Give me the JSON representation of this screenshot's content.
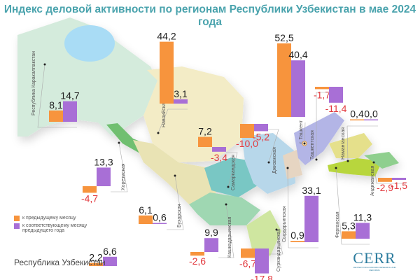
{
  "title": "Индекс деловой активности по регионам Республики Узбекистан в мае 2024 года",
  "colors": {
    "prev_month": "#f7943d",
    "prev_year": "#a86fd6",
    "negative_text": "#e23a3f",
    "positive_text": "#222222",
    "title": "#4aa3ad"
  },
  "legend": {
    "prev_month": "к предыдущему месяцу",
    "prev_year": "к соответствующему месяцу предыдущего года"
  },
  "logo": {
    "name": "CERR",
    "subtitle": "CENTER FOR ECONOMIC RESEARCH AND REFORMS"
  },
  "chart_data": {
    "type": "bar",
    "title": "Индекс деловой активности по регионам Республики Узбекистан в мае 2024 года",
    "series_names": [
      "к предыдущему месяцу",
      "к соответствующему месяцу предыдущего года"
    ],
    "regions": [
      {
        "id": "karakalpakstan",
        "name": "Республика Каракалпакстан",
        "prev_month": 8.1,
        "prev_year": 14.7,
        "prev_month_label": "8,1",
        "prev_year_label": "14,7"
      },
      {
        "id": "navoi",
        "name": "Навоийская",
        "prev_month": 44.2,
        "prev_year": 3.1,
        "prev_month_label": "44,2",
        "prev_year_label": "3,1"
      },
      {
        "id": "tashkent_city",
        "name": "г. Ташкент",
        "prev_month": 52.5,
        "prev_year": 40.4,
        "prev_month_label": "52,5",
        "prev_year_label": "40,4"
      },
      {
        "id": "tashkent_region",
        "name": "Ташкентская",
        "prev_month": -1.7,
        "prev_year": -11.4,
        "prev_month_label": "-1,7",
        "prev_year_label": "-11,4"
      },
      {
        "id": "namangan",
        "name": "Наманганская",
        "prev_month": 0.4,
        "prev_year": 0.0,
        "prev_month_label": "0,4",
        "prev_year_label": "0,0"
      },
      {
        "id": "andijan",
        "name": "Андижанская",
        "prev_month": -2.9,
        "prev_year": -1.5,
        "prev_month_label": "-2,9",
        "prev_year_label": "-1,5"
      },
      {
        "id": "fergana",
        "name": "Ферганская",
        "prev_month": 5.3,
        "prev_year": 11.3,
        "prev_month_label": "5,3",
        "prev_year_label": "11,3"
      },
      {
        "id": "syrdarya",
        "name": "Сырдарьинская",
        "prev_month": 0.9,
        "prev_year": 33.1,
        "prev_month_label": "0,9",
        "prev_year_label": "33,1"
      },
      {
        "id": "surkhandarya",
        "name": "Сурхандарьинская",
        "prev_month": -6.7,
        "prev_year": -17.8,
        "prev_month_label": "-6,7",
        "prev_year_label": "-17,8"
      },
      {
        "id": "kashkadarya",
        "name": "Кашкадарьинская",
        "prev_month": -2.6,
        "prev_year": 9.9,
        "prev_month_label": "-2,6",
        "prev_year_label": "9,9"
      },
      {
        "id": "samarkand",
        "name": "Самаркандская",
        "prev_month": 7.2,
        "prev_year": -3.4,
        "prev_month_label": "7,2",
        "prev_year_label": "-3,4"
      },
      {
        "id": "jizzakh",
        "name": "Джизакская",
        "prev_month": -10.0,
        "prev_year": -5.2,
        "prev_month_label": "-10,0",
        "prev_year_label": "-5,2"
      },
      {
        "id": "bukhara",
        "name": "Бухарская",
        "prev_month": 6.1,
        "prev_year": 0.6,
        "prev_month_label": "6,1",
        "prev_year_label": "0,6"
      },
      {
        "id": "khorezm",
        "name": "Хорезмская",
        "prev_month": -4.7,
        "prev_year": 13.3,
        "prev_month_label": "-4,7",
        "prev_year_label": "13,3"
      }
    ],
    "national": {
      "id": "uzbekistan",
      "name": "Республика Узбекистан",
      "prev_month": 2.2,
      "prev_year": 6.6,
      "prev_month_label": "2,2",
      "prev_year_label": "6,6"
    }
  }
}
